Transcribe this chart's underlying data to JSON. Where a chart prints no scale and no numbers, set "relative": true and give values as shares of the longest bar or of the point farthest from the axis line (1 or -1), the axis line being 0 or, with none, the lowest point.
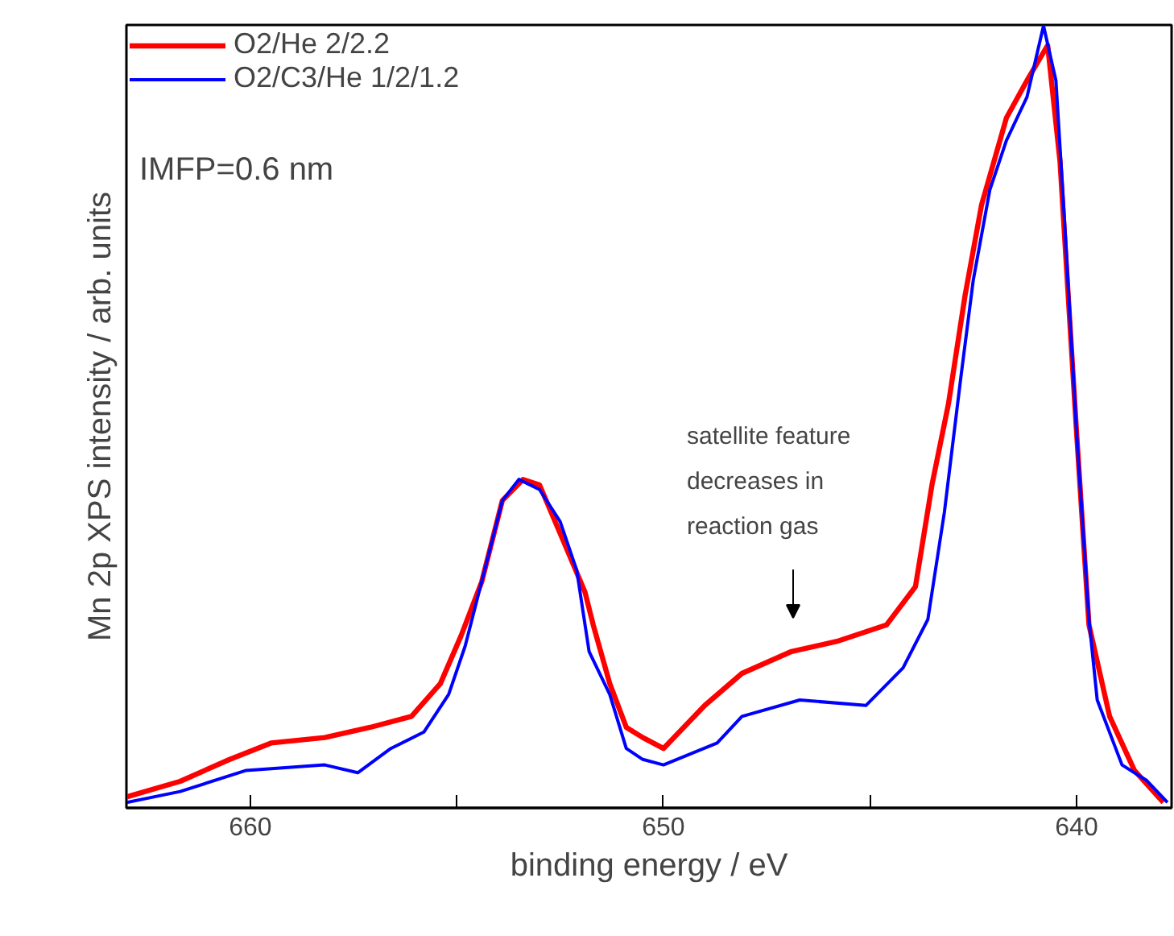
{
  "chart_data": {
    "type": "line",
    "relative": true,
    "xlabel": "binding energy / eV",
    "ylabel": "Mn 2p XPS intensity / arb. units",
    "xlim": [
      663,
      637.7
    ],
    "xticks": [
      660,
      {
        "value": 655,
        "label": null
      },
      650,
      {
        "value": 645,
        "label": null
      },
      640
    ],
    "legend": "top left",
    "grid": false,
    "line_style": "solid",
    "marker": "none",
    "annotations": [
      "IMFP=0.6 nm",
      "satellite feature\ndecreases in\nreaction gas"
    ],
    "series": [
      {
        "name": "O2/He 2/2.2",
        "color": "#ff0000",
        "x": [
          663.0,
          661.7,
          660.5,
          659.5,
          658.2,
          657.1,
          656.1,
          655.4,
          654.9,
          654.4,
          653.9,
          653.4,
          653.0,
          652.5,
          651.9,
          651.7,
          651.3,
          650.9,
          650.5,
          650.0,
          649.0,
          648.1,
          646.9,
          645.8,
          644.6,
          643.9,
          643.5,
          643.1,
          642.7,
          642.3,
          641.7,
          641.2,
          640.7,
          640.4,
          640.0,
          639.7,
          639.2,
          638.6,
          637.9
        ],
        "values": [
          0.014,
          0.034,
          0.062,
          0.083,
          0.09,
          0.103,
          0.117,
          0.159,
          0.22,
          0.289,
          0.393,
          0.42,
          0.413,
          0.351,
          0.276,
          0.234,
          0.159,
          0.103,
          0.09,
          0.076,
          0.131,
          0.172,
          0.2,
          0.213,
          0.234,
          0.283,
          0.413,
          0.517,
          0.655,
          0.771,
          0.882,
          0.93,
          0.975,
          0.826,
          0.48,
          0.234,
          0.117,
          0.048,
          0.007
        ]
      },
      {
        "name": "O2/C3/He 1/2/1.2",
        "color": "#0000ff",
        "x": [
          663.0,
          661.7,
          660.1,
          658.2,
          657.4,
          656.6,
          655.8,
          655.2,
          654.8,
          654.3,
          653.9,
          653.5,
          653.0,
          652.5,
          652.1,
          651.8,
          651.3,
          650.9,
          650.5,
          650.0,
          648.7,
          648.1,
          646.7,
          645.1,
          644.2,
          643.6,
          643.2,
          642.8,
          642.5,
          642.1,
          641.7,
          641.2,
          640.8,
          640.5,
          640.3,
          640.0,
          639.7,
          639.5,
          638.9,
          638.3,
          637.8
        ],
        "values": [
          0.007,
          0.021,
          0.048,
          0.055,
          0.045,
          0.076,
          0.097,
          0.145,
          0.207,
          0.31,
          0.393,
          0.42,
          0.407,
          0.366,
          0.304,
          0.2,
          0.145,
          0.076,
          0.062,
          0.055,
          0.083,
          0.117,
          0.138,
          0.131,
          0.179,
          0.241,
          0.378,
          0.551,
          0.675,
          0.79,
          0.853,
          0.909,
          1.0,
          0.93,
          0.758,
          0.48,
          0.241,
          0.138,
          0.055,
          0.035,
          0.007
        ]
      }
    ]
  }
}
